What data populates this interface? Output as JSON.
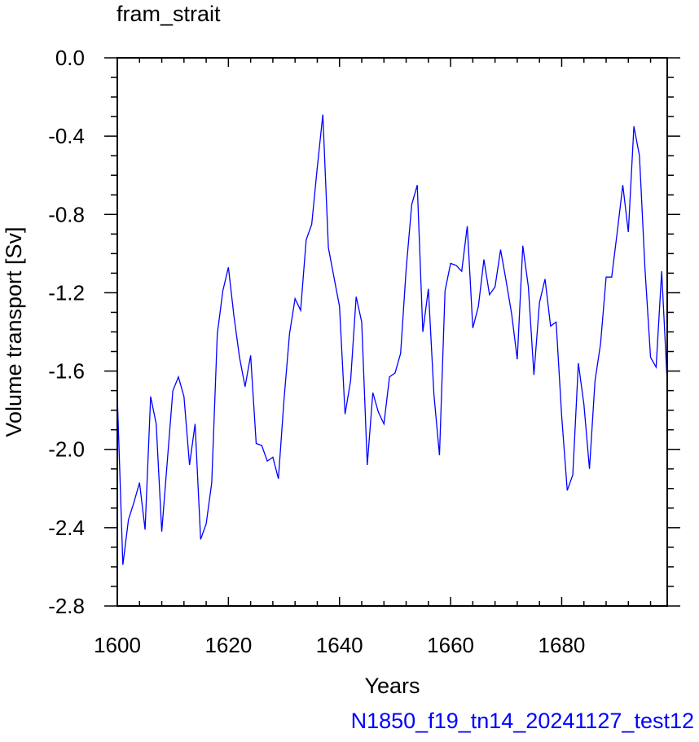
{
  "chart_data": {
    "type": "line",
    "title": "fram_strait",
    "xlabel": "Years",
    "ylabel": "Volume transport [Sv]",
    "case_name": "N1850_f19_tn14_20241127_test12",
    "xlim": [
      1600,
      1699
    ],
    "ylim": [
      -2.8,
      0.0
    ],
    "x_ticks": [
      1600,
      1620,
      1640,
      1660,
      1680
    ],
    "x_tick_labels": [
      "1600",
      "1620",
      "1640",
      "1660",
      "1680"
    ],
    "y_ticks": [
      0.0,
      -0.4,
      -0.8,
      -1.2,
      -1.6,
      -2.0,
      -2.4,
      -2.8
    ],
    "y_tick_labels": [
      "0.0",
      "-0.4",
      "-0.8",
      "-1.2",
      "-1.6",
      "-2.0",
      "-2.4",
      "-2.8"
    ],
    "line_color": "#0000ff",
    "grid": false,
    "series": [
      {
        "x": [
          1600,
          1601,
          1602,
          1603,
          1604,
          1605,
          1606,
          1607,
          1608,
          1609,
          1610,
          1611,
          1612,
          1613,
          1614,
          1615,
          1616,
          1617,
          1618,
          1619,
          1620,
          1621,
          1622,
          1623,
          1624,
          1625,
          1626,
          1627,
          1628,
          1629,
          1630,
          1631,
          1632,
          1633,
          1634,
          1635,
          1636,
          1637,
          1638,
          1639,
          1640,
          1641,
          1642,
          1643,
          1644,
          1645,
          1646,
          1647,
          1648,
          1649,
          1650,
          1651,
          1652,
          1653,
          1654,
          1655,
          1656,
          1657,
          1658,
          1659,
          1660,
          1661,
          1662,
          1663,
          1664,
          1665,
          1666,
          1667,
          1668,
          1669,
          1670,
          1671,
          1672,
          1673,
          1674,
          1675,
          1676,
          1677,
          1678,
          1679,
          1680,
          1681,
          1682,
          1683,
          1684,
          1685,
          1686,
          1687,
          1688,
          1689,
          1690,
          1691,
          1692,
          1693,
          1694,
          1695,
          1696,
          1697,
          1698,
          1699
        ],
        "values": [
          -1.73,
          -2.59,
          -2.36,
          -2.27,
          -2.17,
          -2.41,
          -1.73,
          -1.87,
          -2.42,
          -2.06,
          -1.7,
          -1.63,
          -1.73,
          -2.08,
          -1.87,
          -2.46,
          -2.38,
          -2.17,
          -1.41,
          -1.19,
          -1.07,
          -1.32,
          -1.53,
          -1.68,
          -1.52,
          -1.97,
          -1.98,
          -2.06,
          -2.04,
          -2.15,
          -1.75,
          -1.41,
          -1.23,
          -1.29,
          -0.93,
          -0.85,
          -0.56,
          -0.29,
          -0.97,
          -1.12,
          -1.27,
          -1.82,
          -1.65,
          -1.22,
          -1.35,
          -2.08,
          -1.71,
          -1.81,
          -1.87,
          -1.63,
          -1.61,
          -1.51,
          -1.08,
          -0.75,
          -0.65,
          -1.4,
          -1.18,
          -1.72,
          -2.03,
          -1.19,
          -1.05,
          -1.06,
          -1.09,
          -0.86,
          -1.38,
          -1.27,
          -1.03,
          -1.21,
          -1.17,
          -0.98,
          -1.14,
          -1.31,
          -1.54,
          -0.96,
          -1.17,
          -1.62,
          -1.25,
          -1.13,
          -1.37,
          -1.35,
          -1.83,
          -2.21,
          -2.13,
          -1.56,
          -1.77,
          -2.1,
          -1.65,
          -1.46,
          -1.12,
          -1.12,
          -0.89,
          -0.65,
          -0.89,
          -0.35,
          -0.5,
          -1.08,
          -1.53,
          -1.58,
          -1.09,
          -1.66
        ]
      }
    ]
  }
}
